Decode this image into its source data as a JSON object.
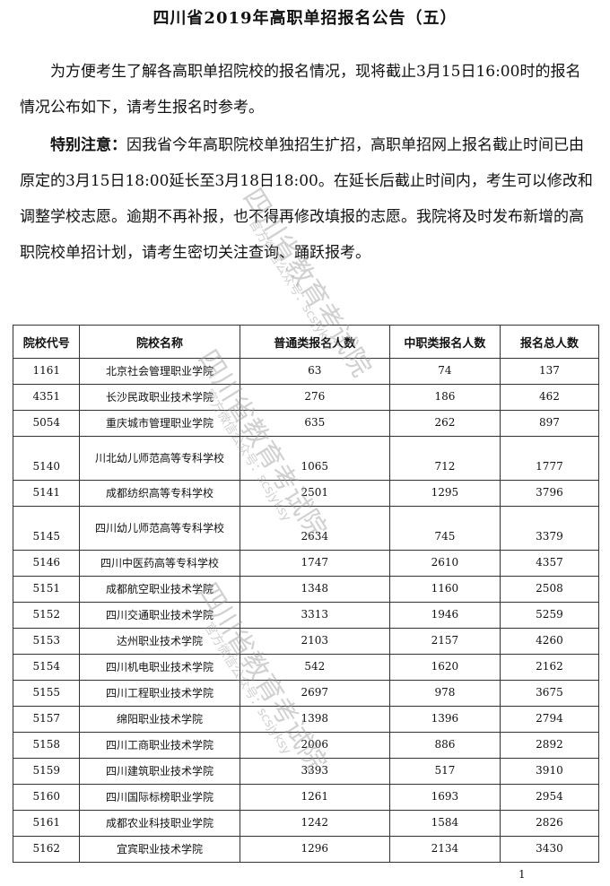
{
  "title": "四川省2019年高职单招报名公告（五）",
  "intro": "为方便考生了解各高职单招院校的报名情况，现将截止3月15日16:00时的报名情况公布如下，请考生报名时参考。",
  "notice_label": "特别注意：",
  "notice_text": "因我省今年高职院校单独招生扩招，高职单招网上报名截止时间已由原定的3月15日18:00延长至3月18日18:00。在延长后截止时间内，考生可以修改和调整学校志愿。逾期不再补报，也不得再修改填报的志愿。我院将及时发布新增的高职院校单招计划，请考生密切关注查询、踊跃报考。",
  "table": {
    "headers": [
      "院校代号",
      "院校名称",
      "普通类报名人数",
      "中职类报名人数",
      "报名总人数"
    ],
    "rows": [
      [
        "1161",
        "北京社会管理职业学院",
        "63",
        "74",
        "137"
      ],
      [
        "4351",
        "长沙民政职业技术学院",
        "276",
        "186",
        "462"
      ],
      [
        "5054",
        "重庆城市管理职业学院",
        "635",
        "262",
        "897"
      ],
      [
        "5140",
        "川北幼儿师范高等专科学校",
        "1065",
        "712",
        "1777"
      ],
      [
        "5141",
        "成都纺织高等专科学校",
        "2501",
        "1295",
        "3796"
      ],
      [
        "5145",
        "四川幼儿师范高等专科学校",
        "2634",
        "745",
        "3379"
      ],
      [
        "5146",
        "四川中医药高等专科学校",
        "1747",
        "2610",
        "4357"
      ],
      [
        "5151",
        "成都航空职业技术学院",
        "1348",
        "1160",
        "2508"
      ],
      [
        "5152",
        "四川交通职业技术学院",
        "3313",
        "1946",
        "5259"
      ],
      [
        "5153",
        "达州职业技术学院",
        "2103",
        "2157",
        "4260"
      ],
      [
        "5154",
        "四川机电职业技术学院",
        "542",
        "1620",
        "2162"
      ],
      [
        "5155",
        "四川工程职业技术学院",
        "2697",
        "978",
        "3675"
      ],
      [
        "5157",
        "绵阳职业技术学院",
        "1398",
        "1396",
        "2794"
      ],
      [
        "5158",
        "四川工商职业技术学院",
        "2006",
        "886",
        "2892"
      ],
      [
        "5159",
        "四川建筑职业技术学院",
        "3393",
        "517",
        "3910"
      ],
      [
        "5160",
        "四川国际标榜职业学院",
        "1261",
        "1693",
        "2954"
      ],
      [
        "5161",
        "成都农业科技职业学院",
        "1242",
        "1584",
        "2826"
      ],
      [
        "5162",
        "宜宾职业技术学院",
        "1296",
        "2134",
        "3430"
      ]
    ]
  },
  "watermark": {
    "main": "四川省教育考试院",
    "sub": "官方微信公众号：scsjyksy"
  },
  "page_number": "1"
}
